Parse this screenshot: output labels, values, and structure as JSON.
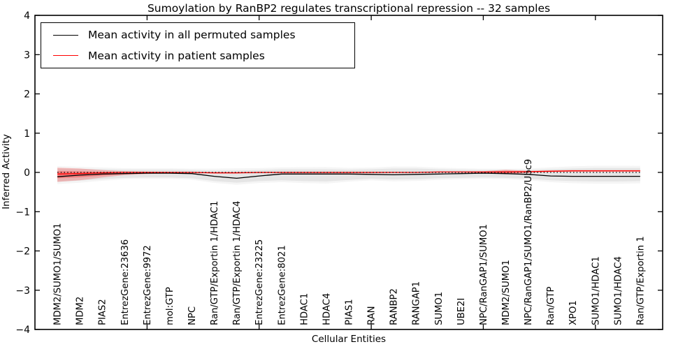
{
  "figure": {
    "title": "Sumoylation by RanBP2 regulates transcriptional repression -- 32 samples",
    "xlabel": "Cellular Entities",
    "ylabel": "Inferred Activity"
  },
  "legend": {
    "entries": [
      {
        "label": "Mean activity in all permuted samples",
        "color": "#000000"
      },
      {
        "label": "Mean activity in patient samples",
        "color": "#ff0000"
      }
    ]
  },
  "chart_data": {
    "type": "line",
    "title": "Sumoylation by RanBP2 regulates transcriptional repression -- 32 samples",
    "xlabel": "Cellular Entities",
    "ylabel": "Inferred Activity",
    "ylim": [
      -4,
      4
    ],
    "xlim": [
      0,
      28
    ],
    "grid": false,
    "legend_position": "upper left",
    "yticks": [
      -4,
      -3,
      -2,
      -1,
      0,
      1,
      2,
      3,
      4
    ],
    "ytick_labels": [
      "−4",
      "−3",
      "−2",
      "−1",
      "0",
      "1",
      "2",
      "3",
      "4"
    ],
    "xticks_numeric": [
      5,
      10,
      15,
      20,
      25
    ],
    "categories": [
      "MDM2/SUMO1/SUMO1",
      "MDM2",
      "PIAS2",
      "EntrezGene:23636",
      "EntrezGene:9972",
      "mol:GTP",
      "NPC",
      "Ran/GTP/Exportin 1/HDAC1",
      "Ran/GTP/Exportin 1/HDAC4",
      "EntrezGene:23225",
      "EntrezGene:8021",
      "HDAC1",
      "HDAC4",
      "PIAS1",
      "RAN",
      "RANBP2",
      "RANGAP1",
      "SUMO1",
      "UBE2I",
      "NPC/RanGAP1/SUMO1",
      "MDM2/SUMO1",
      "NPC/RanGAP1/SUMO1/RanBP2/Ubc9",
      "Ran/GTP",
      "XPO1",
      "SUMO1/HDAC1",
      "SUMO1/HDAC4",
      "Ran/GTP/Exportin 1"
    ],
    "series": [
      {
        "name": "Mean activity in all permuted samples",
        "color": "#000000",
        "style": "solid",
        "values": [
          -0.11,
          -0.07,
          -0.04,
          -0.03,
          -0.02,
          -0.02,
          -0.03,
          -0.1,
          -0.15,
          -0.09,
          -0.04,
          -0.04,
          -0.04,
          -0.04,
          -0.05,
          -0.06,
          -0.05,
          -0.04,
          -0.03,
          -0.02,
          -0.03,
          -0.05,
          -0.09,
          -0.1,
          -0.1,
          -0.1,
          -0.1
        ]
      },
      {
        "name": "Mean activity in patient samples",
        "color": "#ff0000",
        "style": "solid",
        "values": [
          -0.04,
          -0.03,
          -0.01,
          0,
          0,
          0,
          0,
          -0.01,
          -0.01,
          0,
          0,
          0,
          0,
          0,
          0,
          0,
          0,
          0.01,
          0.01,
          0.01,
          0.01,
          0.02,
          0.03,
          0.04,
          0.04,
          0.04,
          0.04
        ]
      },
      {
        "name": "zero-reference",
        "color": "#000000",
        "style": "dotted",
        "constant_y": 0
      }
    ],
    "bands": [
      {
        "name": "permuted-std-band",
        "color": "#777777",
        "layers": [
          {
            "scale": 1.35,
            "opacity": 0.07
          },
          {
            "scale": 1.0,
            "opacity": 0.12
          }
        ],
        "upper": [
          0.1,
          0.09,
          0.08,
          0.07,
          0.07,
          0.07,
          0.06,
          0.05,
          0.05,
          0.06,
          0.08,
          0.08,
          0.08,
          0.07,
          0.08,
          0.1,
          0.1,
          0.08,
          0.07,
          0.06,
          0.06,
          0.06,
          0.08,
          0.1,
          0.11,
          0.11,
          0.11
        ],
        "lower": [
          -0.24,
          -0.21,
          -0.17,
          -0.14,
          -0.13,
          -0.13,
          -0.15,
          -0.22,
          -0.26,
          -0.22,
          -0.2,
          -0.22,
          -0.23,
          -0.19,
          -0.16,
          -0.18,
          -0.17,
          -0.15,
          -0.14,
          -0.13,
          -0.14,
          -0.16,
          -0.2,
          -0.22,
          -0.23,
          -0.23,
          -0.22
        ]
      },
      {
        "name": "patient-std-band",
        "color": "#ff0000",
        "layers": [
          {
            "scale": 1.0,
            "opacity": 0.22
          },
          {
            "scale": 0.5,
            "opacity": 0.28
          }
        ],
        "upper": [
          0.12,
          0.1,
          0.06,
          0.03,
          0.02,
          0.01,
          0.01,
          0.01,
          0.01,
          0.01,
          0.01,
          0.01,
          0.01,
          0.01,
          0.01,
          0.01,
          0.01,
          0.02,
          0.02,
          0.03,
          0.07,
          0.04,
          0.05,
          0.06,
          0.06,
          0.06,
          0.06
        ],
        "lower": [
          -0.24,
          -0.2,
          -0.13,
          -0.07,
          -0.04,
          -0.02,
          -0.02,
          -0.03,
          -0.03,
          -0.02,
          -0.02,
          -0.02,
          -0.02,
          -0.02,
          -0.02,
          -0.01,
          -0.01,
          0,
          0,
          -0.01,
          -0.05,
          -0.01,
          0.01,
          0.02,
          0.02,
          0.02,
          0.02
        ]
      }
    ]
  }
}
